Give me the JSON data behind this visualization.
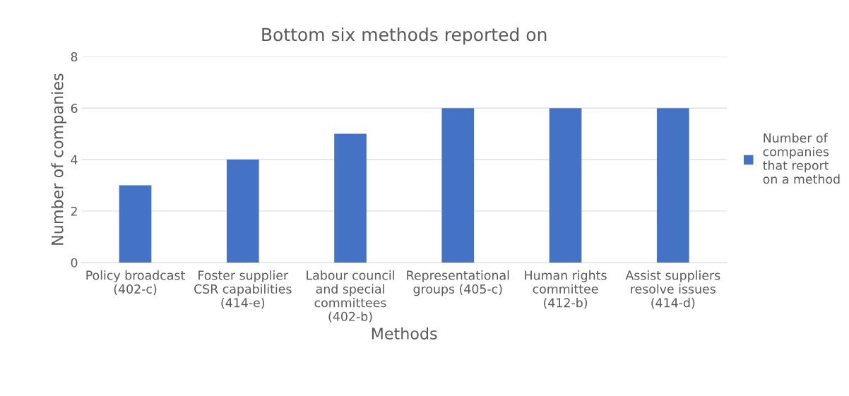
{
  "chart_data": {
    "type": "bar",
    "title": "Bottom six methods reported on",
    "xlabel": "Methods",
    "ylabel": "Number of companies",
    "categories": [
      "Policy broadcast (402-c)",
      "Foster supplier CSR capabilities (414-e)",
      "Labour council and special committees (402-b)",
      "Representational groups (405-c)",
      "Human rights committee (412-b)",
      "Assist suppliers resolve issues (414-d)"
    ],
    "series": [
      {
        "name": "Number of companies that report on a method",
        "color": "#4472c4",
        "values": [
          3,
          4,
          5,
          6,
          6,
          6
        ]
      }
    ],
    "ylim": [
      0,
      8
    ],
    "yticks": [
      0,
      2,
      4,
      6,
      8
    ],
    "grid": "y",
    "legend": "right"
  }
}
